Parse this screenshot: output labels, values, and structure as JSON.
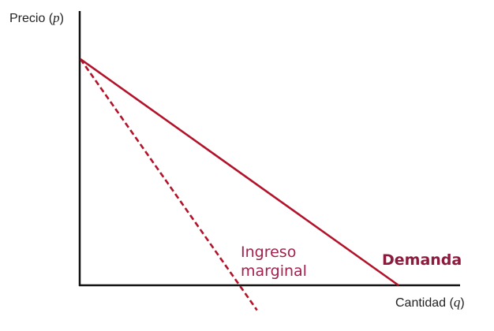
{
  "chart_data": {
    "type": "line",
    "title": "",
    "ylabel": {
      "text": "Precio (",
      "var": "p",
      "close": ")"
    },
    "xlabel": {
      "text": "Cantidad (",
      "var": "q",
      "close": ")"
    },
    "xlim": [
      0,
      1
    ],
    "ylim": [
      0,
      1
    ],
    "grid": false,
    "legend": "none",
    "series": [
      {
        "name": "Demanda",
        "style": "solid",
        "color": "#b3132a",
        "points": [
          [
            0,
            1
          ],
          [
            1,
            0
          ]
        ]
      },
      {
        "name": "Ingreso marginal",
        "label_lines": [
          "Ingreso",
          "marginal"
        ],
        "style": "dashed",
        "color": "#b3132a",
        "points": [
          [
            0,
            1
          ],
          [
            0.5,
            0
          ]
        ],
        "extends_below_axis": true
      }
    ],
    "colors": {
      "axis": "#111111",
      "curve": "#b3132a",
      "demand_label": "#8b1a3c",
      "mr_label": "#a3214a"
    }
  }
}
